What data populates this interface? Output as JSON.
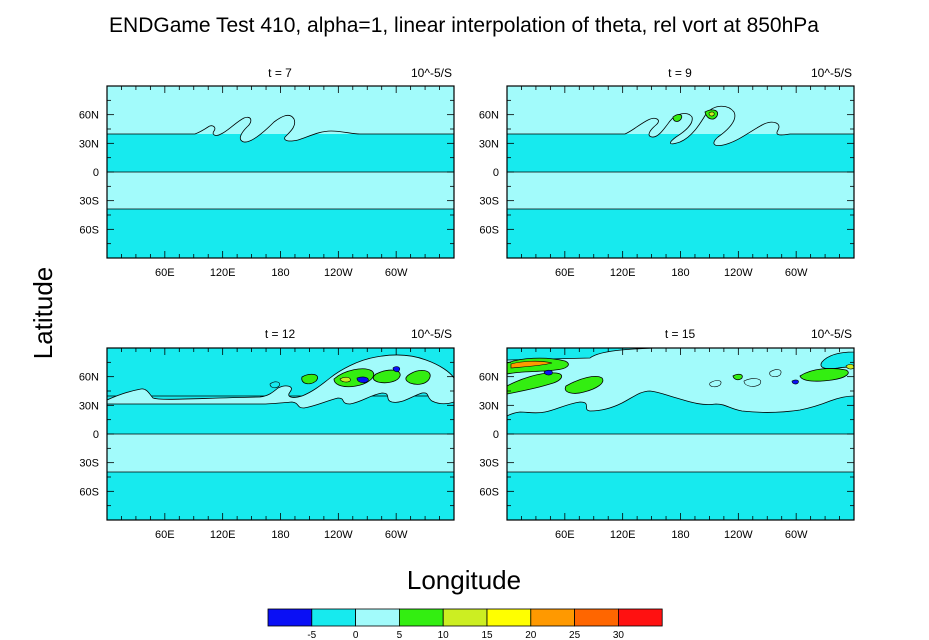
{
  "title": "ENDGame Test 410, alpha=1, linear interpolation of theta, rel vort at 850hPa",
  "ylabel": "Latitude",
  "xlabel": "Longitude",
  "colors": {
    "lvl_m10": "#0a0ff5",
    "lvl_m5": "#17eaee",
    "lvl_0": "#a2fbfb",
    "lvl_5": "#33ee11",
    "lvl_10": "#ccee22",
    "lvl_15": "#ffff00",
    "lvl_20": "#ff9900",
    "lvl_25": "#ff6600",
    "lvl_30": "#ff1111"
  },
  "chart_data": {
    "type": "contour-map",
    "panels": [
      {
        "time_label": "t = 7",
        "units": "10^-5/S"
      },
      {
        "time_label": "t = 9",
        "units": "10^-5/S"
      },
      {
        "time_label": "t = 12",
        "units": "10^-5/S"
      },
      {
        "time_label": "t = 15",
        "units": "10^-5/S"
      }
    ],
    "x_ticks": [
      "60E",
      "120E",
      "180",
      "120W",
      "60W"
    ],
    "x_tick_lon": [
      60,
      120,
      180,
      240,
      300
    ],
    "y_ticks": [
      "60N",
      "30N",
      "0",
      "30S",
      "60S"
    ],
    "y_tick_lat": [
      60,
      30,
      0,
      -30,
      -60
    ],
    "xlim": [
      0,
      360
    ],
    "ylim": [
      -90,
      90
    ],
    "colorbar": {
      "labels": [
        "-5",
        "0",
        "5",
        "10",
        "15",
        "20",
        "25",
        "30"
      ],
      "levels": [
        -5,
        0,
        5,
        10,
        15,
        20,
        25,
        30
      ]
    }
  }
}
